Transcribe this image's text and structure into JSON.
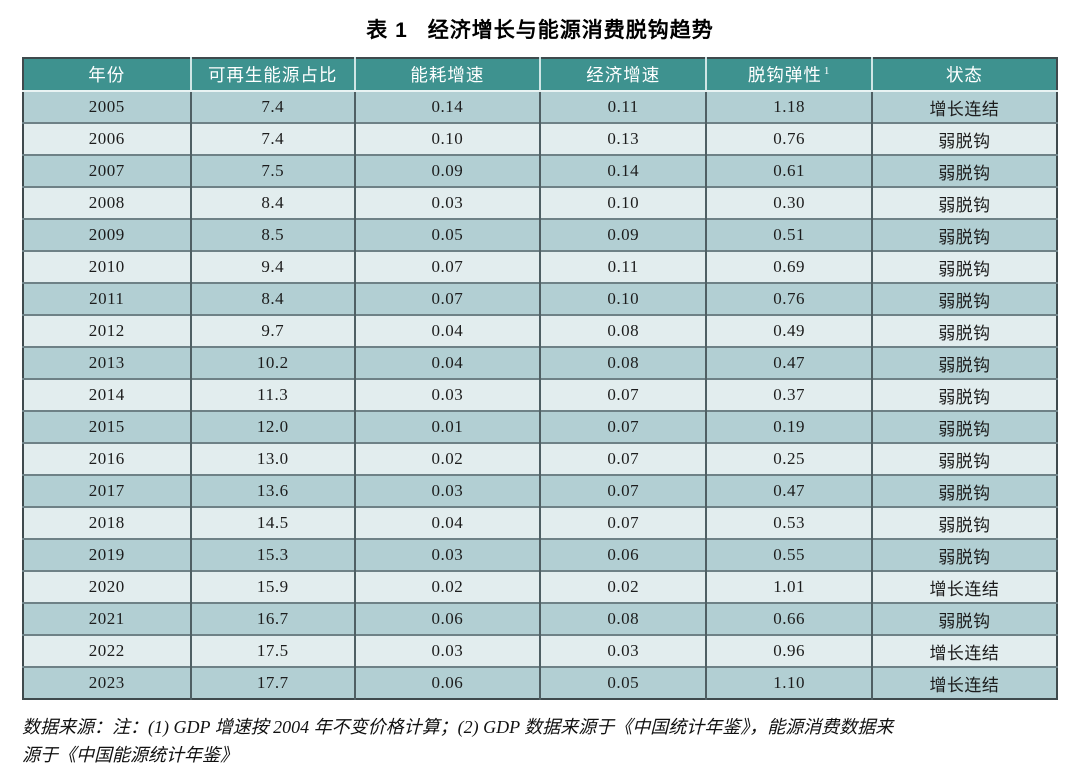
{
  "title": {
    "tag": "表 1",
    "text": "经济增长与能源消费脱钩趋势"
  },
  "table": {
    "headers": [
      "年份",
      "可再生能源占比",
      "能耗增速",
      "经济增速",
      "脱钩弹性",
      "状态"
    ],
    "elasticity_note_marker": "1",
    "rows": [
      {
        "year": "2005",
        "renewable_share": "7.4",
        "energy_growth": "0.14",
        "gdp_growth": "0.11",
        "elasticity": "1.18",
        "status": "增长连结"
      },
      {
        "year": "2006",
        "renewable_share": "7.4",
        "energy_growth": "0.10",
        "gdp_growth": "0.13",
        "elasticity": "0.76",
        "status": "弱脱钩"
      },
      {
        "year": "2007",
        "renewable_share": "7.5",
        "energy_growth": "0.09",
        "gdp_growth": "0.14",
        "elasticity": "0.61",
        "status": "弱脱钩"
      },
      {
        "year": "2008",
        "renewable_share": "8.4",
        "energy_growth": "0.03",
        "gdp_growth": "0.10",
        "elasticity": "0.30",
        "status": "弱脱钩"
      },
      {
        "year": "2009",
        "renewable_share": "8.5",
        "energy_growth": "0.05",
        "gdp_growth": "0.09",
        "elasticity": "0.51",
        "status": "弱脱钩"
      },
      {
        "year": "2010",
        "renewable_share": "9.4",
        "energy_growth": "0.07",
        "gdp_growth": "0.11",
        "elasticity": "0.69",
        "status": "弱脱钩"
      },
      {
        "year": "2011",
        "renewable_share": "8.4",
        "energy_growth": "0.07",
        "gdp_growth": "0.10",
        "elasticity": "0.76",
        "status": "弱脱钩"
      },
      {
        "year": "2012",
        "renewable_share": "9.7",
        "energy_growth": "0.04",
        "gdp_growth": "0.08",
        "elasticity": "0.49",
        "status": "弱脱钩"
      },
      {
        "year": "2013",
        "renewable_share": "10.2",
        "energy_growth": "0.04",
        "gdp_growth": "0.08",
        "elasticity": "0.47",
        "status": "弱脱钩"
      },
      {
        "year": "2014",
        "renewable_share": "11.3",
        "energy_growth": "0.03",
        "gdp_growth": "0.07",
        "elasticity": "0.37",
        "status": "弱脱钩"
      },
      {
        "year": "2015",
        "renewable_share": "12.0",
        "energy_growth": "0.01",
        "gdp_growth": "0.07",
        "elasticity": "0.19",
        "status": "弱脱钩"
      },
      {
        "year": "2016",
        "renewable_share": "13.0",
        "energy_growth": "0.02",
        "gdp_growth": "0.07",
        "elasticity": "0.25",
        "status": "弱脱钩"
      },
      {
        "year": "2017",
        "renewable_share": "13.6",
        "energy_growth": "0.03",
        "gdp_growth": "0.07",
        "elasticity": "0.47",
        "status": "弱脱钩"
      },
      {
        "year": "2018",
        "renewable_share": "14.5",
        "energy_growth": "0.04",
        "gdp_growth": "0.07",
        "elasticity": "0.53",
        "status": "弱脱钩"
      },
      {
        "year": "2019",
        "renewable_share": "15.3",
        "energy_growth": "0.03",
        "gdp_growth": "0.06",
        "elasticity": "0.55",
        "status": "弱脱钩"
      },
      {
        "year": "2020",
        "renewable_share": "15.9",
        "energy_growth": "0.02",
        "gdp_growth": "0.02",
        "elasticity": "1.01",
        "status": "增长连结"
      },
      {
        "year": "2021",
        "renewable_share": "16.7",
        "energy_growth": "0.06",
        "gdp_growth": "0.08",
        "elasticity": "0.66",
        "status": "弱脱钩"
      },
      {
        "year": "2022",
        "renewable_share": "17.5",
        "energy_growth": "0.03",
        "gdp_growth": "0.03",
        "elasticity": "0.96",
        "status": "增长连结"
      },
      {
        "year": "2023",
        "renewable_share": "17.7",
        "energy_growth": "0.06",
        "gdp_growth": "0.05",
        "elasticity": "1.10",
        "status": "增长连结"
      }
    ]
  },
  "footnote": {
    "lines": [
      "数据来源：注：(1) GDP 增速按 2004 年不变价格计算；(2) GDP 数据来源于《中国统计年鉴》，能源消费数据来",
      "源于《中国能源统计年鉴》"
    ]
  },
  "colors": {
    "header_bg": "#3E928F",
    "row_dark": "#B2CFD3",
    "row_light": "#E2EDEE"
  }
}
